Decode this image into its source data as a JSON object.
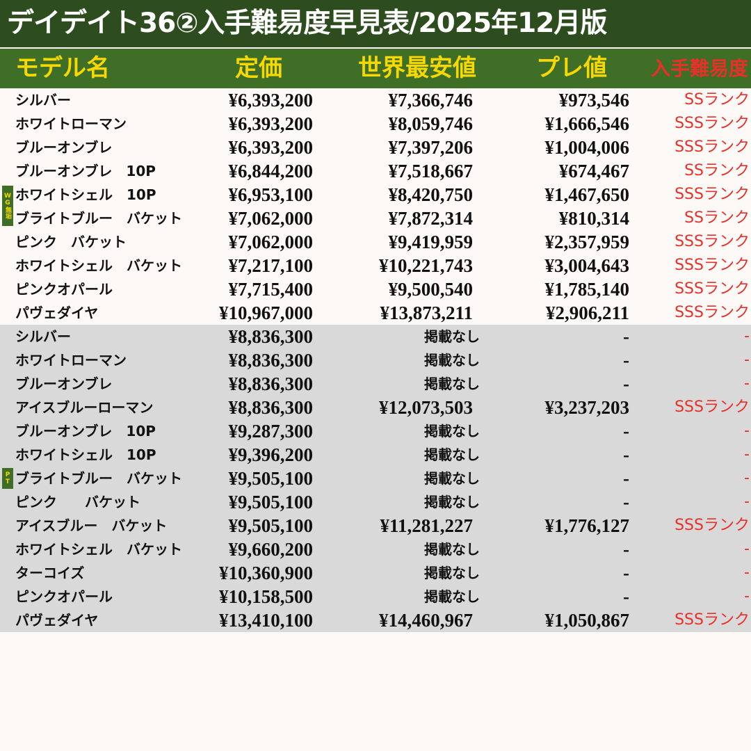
{
  "header": {
    "title": "デイデイト36②入手難易度早見表/2025年12月版"
  },
  "table": {
    "columns": [
      "モデル名",
      "定価",
      "世界最安値",
      "プレ値",
      "入手難易度"
    ],
    "groups": [
      {
        "label": "WG無垢",
        "rows": [
          [
            "シルバー",
            "¥6,393,200",
            "¥7,366,746",
            "¥973,546",
            "SSランク"
          ],
          [
            "ホワイトローマン",
            "¥6,393,200",
            "¥8,059,746",
            "¥1,666,546",
            "SSSランク"
          ],
          [
            "ブルーオンブレ",
            "¥6,393,200",
            "¥7,397,206",
            "¥1,004,006",
            "SSSランク"
          ],
          [
            "ブルーオンブレ　10P",
            "¥6,844,200",
            "¥7,518,667",
            "¥674,467",
            "SSランク"
          ],
          [
            "ホワイトシェル　10P",
            "¥6,953,100",
            "¥8,420,750",
            "¥1,467,650",
            "SSSランク"
          ],
          [
            "ブライトブルー　バケット",
            "¥7,062,000",
            "¥7,872,314",
            "¥810,314",
            "SSランク"
          ],
          [
            "ピンク　バケット",
            "¥7,062,000",
            "¥9,419,959",
            "¥2,357,959",
            "SSSランク"
          ],
          [
            "ホワイトシェル　バケット",
            "¥7,217,100",
            "¥10,221,743",
            "¥3,004,643",
            "SSSランク"
          ],
          [
            "ピンクオパール",
            "¥7,715,400",
            "¥9,500,540",
            "¥1,785,140",
            "SSSランク"
          ],
          [
            "パヴェダイヤ",
            "¥10,967,000",
            "¥13,873,211",
            "¥2,906,211",
            "SSSランク"
          ]
        ]
      },
      {
        "label": "PT",
        "rows": [
          [
            "シルバー",
            "¥8,836,300",
            "掲載なし",
            "-",
            "-"
          ],
          [
            "ホワイトローマン",
            "¥8,836,300",
            "掲載なし",
            "-",
            "-"
          ],
          [
            "ブルーオンブレ",
            "¥8,836,300",
            "掲載なし",
            "-",
            "-"
          ],
          [
            "アイスブルーローマン",
            "¥8,836,300",
            "¥12,073,503",
            "¥3,237,203",
            "SSSランク"
          ],
          [
            "ブルーオンブレ　10P",
            "¥9,287,300",
            "掲載なし",
            "-",
            "-"
          ],
          [
            "ホワイトシェル　10P",
            "¥9,396,200",
            "掲載なし",
            "-",
            "-"
          ],
          [
            "ブライトブルー　バケット",
            "¥9,505,100",
            "掲載なし",
            "-",
            "-"
          ],
          [
            "ピンク　　バケット",
            "¥9,505,100",
            "掲載なし",
            "-",
            "-"
          ],
          [
            "アイスブルー　バケット",
            "¥9,505,100",
            "¥11,281,227",
            "¥1,776,127",
            "SSSランク"
          ],
          [
            "ホワイトシェル　バケット",
            "¥9,660,200",
            "掲載なし",
            "-",
            "-"
          ],
          [
            "ターコイズ",
            "¥10,360,900",
            "掲載なし",
            "-",
            "-"
          ],
          [
            "ピンクオパール",
            "¥10,158,500",
            "掲載なし",
            "-",
            "-"
          ],
          [
            "パヴェダイヤ",
            "¥13,410,100",
            "¥14,460,967",
            "¥1,050,867",
            "SSSランク"
          ]
        ]
      }
    ]
  }
}
